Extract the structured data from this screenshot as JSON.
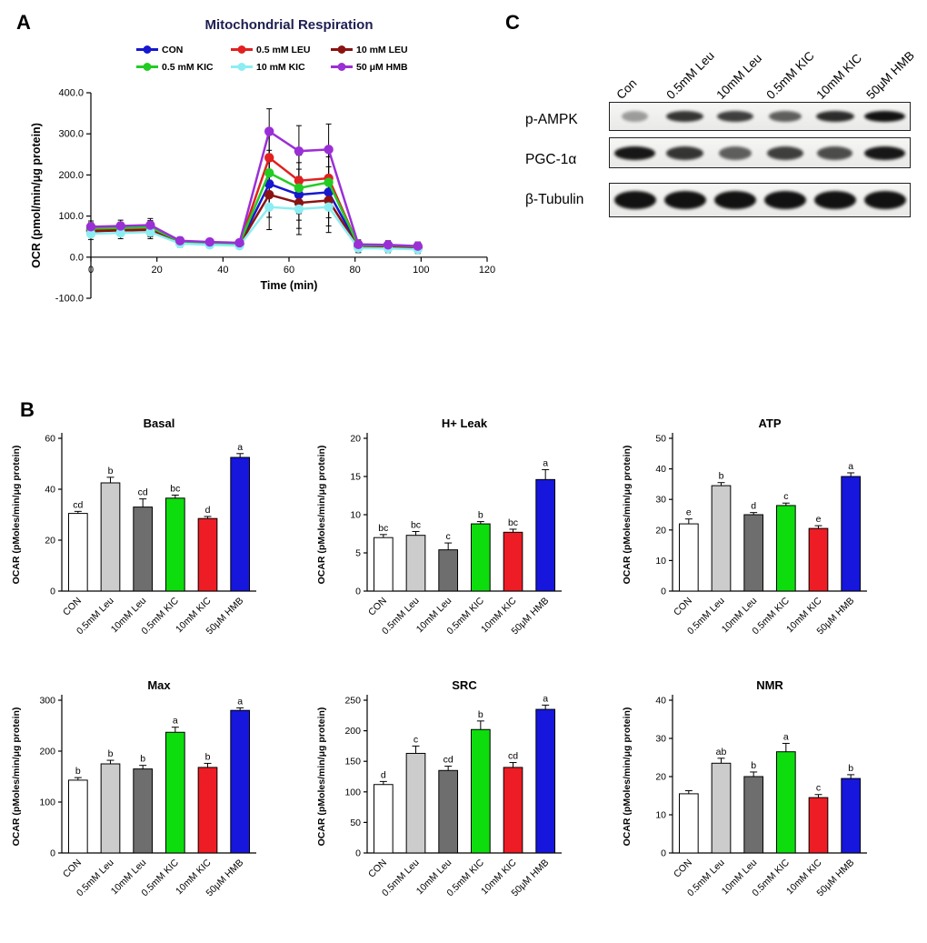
{
  "panel_labels": {
    "a": "A",
    "b": "B",
    "c": "C"
  },
  "colors": {
    "bar_fills": [
      "#ffffff",
      "#cccccc",
      "#6e6e6e",
      "#0ddd0d",
      "#ee1c24",
      "#1616dd"
    ]
  },
  "blot": {
    "columns": [
      "Con",
      "0.5mM Leu",
      "10mM Leu",
      "0.5mM KIC",
      "10mM KIC",
      "50μM HMB"
    ],
    "rows": [
      {
        "label": "p-AMPK",
        "intensities": [
          0.15,
          0.75,
          0.7,
          0.5,
          0.8,
          0.95
        ]
      },
      {
        "label": "PGC-1α",
        "intensities": [
          0.92,
          0.75,
          0.5,
          0.7,
          0.62,
          0.92
        ]
      },
      {
        "label": "β-Tubulin",
        "intensities": [
          0.95,
          0.95,
          0.95,
          0.95,
          0.95,
          0.95
        ]
      }
    ]
  },
  "chart_data": [
    {
      "type": "line",
      "title": "Mitochondrial Respiration",
      "xlabel": "Time (min)",
      "ylabel": "OCR (pmol/min/μg protein)",
      "xlim": [
        0,
        120
      ],
      "ylim": [
        -100,
        400
      ],
      "xticks": [
        0,
        20,
        40,
        60,
        80,
        100,
        120
      ],
      "yticks": [
        -100,
        0,
        100,
        200,
        300,
        400
      ],
      "ytick_labels": [
        "-100.0",
        "0.0",
        "100.0",
        "200.0",
        "300.0",
        "400.0"
      ],
      "legend_rows": [
        [
          "CON",
          "0.5 mM LEU",
          "10 mM LEU"
        ],
        [
          "0.5 mM KIC",
          "10 mM KIC",
          "50 μM HMB"
        ]
      ],
      "x": [
        0,
        9,
        18,
        27,
        36,
        45,
        54,
        63,
        72,
        81,
        90,
        99
      ],
      "errors": [
        14,
        14,
        16,
        9,
        8,
        8,
        55,
        62,
        62,
        11,
        10,
        10
      ],
      "series": [
        {
          "name": "CON",
          "color": "#1717cf",
          "values": [
            65,
            66,
            68,
            36,
            33,
            31,
            178,
            152,
            158,
            26,
            26,
            23
          ]
        },
        {
          "name": "0.5 mM LEU",
          "color": "#e22020",
          "values": [
            68,
            69,
            71,
            37,
            34,
            32,
            242,
            186,
            192,
            28,
            28,
            25
          ]
        },
        {
          "name": "10 mM LEU",
          "color": "#8c1212",
          "values": [
            63,
            65,
            66,
            35,
            32,
            30,
            152,
            132,
            138,
            24,
            24,
            21
          ]
        },
        {
          "name": "0.5 mM KIC",
          "color": "#23cc23",
          "values": [
            70,
            71,
            73,
            38,
            35,
            33,
            205,
            168,
            182,
            29,
            29,
            26
          ]
        },
        {
          "name": "10 mM KIC",
          "color": "#8ceef2",
          "values": [
            57,
            59,
            61,
            33,
            30,
            28,
            122,
            117,
            122,
            22,
            21,
            19
          ]
        },
        {
          "name": "50 μM HMB",
          "color": "#9b2fd6",
          "values": [
            74,
            76,
            78,
            40,
            37,
            35,
            306,
            258,
            262,
            31,
            30,
            27
          ]
        }
      ]
    },
    {
      "type": "bar",
      "title": "Basal",
      "ylabel": "OCAR (pMoles/min/μg protein)",
      "ylim": [
        0,
        60
      ],
      "yticks": [
        0,
        20,
        40,
        60
      ],
      "categories": [
        "CON",
        "0.5mM Leu",
        "10mM Leu",
        "0.5mM KIC",
        "10mM KIC",
        "50μM HMB"
      ],
      "values": [
        30.5,
        42.5,
        33,
        36.5,
        28.5,
        52.5
      ],
      "errors": [
        0.8,
        2.2,
        3.2,
        1.2,
        0.8,
        1.5
      ],
      "letters": [
        "cd",
        "b",
        "cd",
        "bc",
        "d",
        "a"
      ]
    },
    {
      "type": "bar",
      "title": "H+ Leak",
      "ylabel": "OCAR (pMoles/min/μg protein)",
      "ylim": [
        0,
        20
      ],
      "yticks": [
        0,
        5,
        10,
        15,
        20
      ],
      "categories": [
        "CON",
        "0.5mM Leu",
        "10mM Leu",
        "0.5mM KIC",
        "10mM KIC",
        "50μM HMB"
      ],
      "values": [
        7,
        7.3,
        5.4,
        8.8,
        7.7,
        14.6
      ],
      "errors": [
        0.4,
        0.5,
        0.9,
        0.3,
        0.4,
        1.3
      ],
      "letters": [
        "bc",
        "bc",
        "c",
        "b",
        "bc",
        "a"
      ]
    },
    {
      "type": "bar",
      "title": "ATP",
      "ylabel": "OCAR (pMoles/min/μg protein)",
      "ylim": [
        0,
        50
      ],
      "yticks": [
        0,
        10,
        20,
        30,
        40,
        50
      ],
      "categories": [
        "CON",
        "0.5mM Leu",
        "10mM Leu",
        "0.5mM KIC",
        "10mM KIC",
        "50μM HMB"
      ],
      "values": [
        22,
        34.5,
        25,
        28,
        20.5,
        37.5
      ],
      "errors": [
        1.6,
        1.0,
        0.7,
        0.8,
        0.9,
        1.2
      ],
      "letters": [
        "e",
        "b",
        "d",
        "c",
        "e",
        "a"
      ]
    },
    {
      "type": "bar",
      "title": "Max",
      "ylabel": "OCAR (pMoles/min/μg protein)",
      "ylim": [
        0,
        300
      ],
      "yticks": [
        0,
        100,
        200,
        300
      ],
      "categories": [
        "CON",
        "0.5mM Leu",
        "10mM Leu",
        "0.5mM KIC",
        "10mM KIC",
        "50μM HMB"
      ],
      "values": [
        143,
        175,
        165,
        237,
        168,
        280
      ],
      "errors": [
        5,
        7,
        7,
        10,
        8,
        5
      ],
      "letters": [
        "b",
        "b",
        "b",
        "a",
        "b",
        "a"
      ]
    },
    {
      "type": "bar",
      "title": "SRC",
      "ylabel": "OCAR (pMoles/min/μg protein)",
      "ylim": [
        0,
        250
      ],
      "yticks": [
        0,
        50,
        100,
        150,
        200,
        250
      ],
      "categories": [
        "CON",
        "0.5mM Leu",
        "10mM Leu",
        "0.5mM KIC",
        "10mM KIC",
        "50μM HMB"
      ],
      "values": [
        112,
        163,
        135,
        202,
        140,
        235
      ],
      "errors": [
        5,
        12,
        7,
        14,
        8,
        7
      ],
      "letters": [
        "d",
        "c",
        "cd",
        "b",
        "cd",
        "a"
      ]
    },
    {
      "type": "bar",
      "title": "NMR",
      "ylabel": "OCAR (pMoles/min/μg protein)",
      "ylim": [
        0,
        40
      ],
      "yticks": [
        0,
        10,
        20,
        30,
        40
      ],
      "categories": [
        "CON",
        "0.5mM Leu",
        "10mM Leu",
        "0.5mM KIC",
        "10mM KIC",
        "50μM HMB"
      ],
      "values": [
        15.5,
        23.5,
        20,
        26.5,
        14.5,
        19.5
      ],
      "errors": [
        0.8,
        1.3,
        1.2,
        2.2,
        0.8,
        1.0
      ],
      "letters": [
        "",
        "ab",
        "b",
        "a",
        "c",
        "b"
      ]
    }
  ]
}
